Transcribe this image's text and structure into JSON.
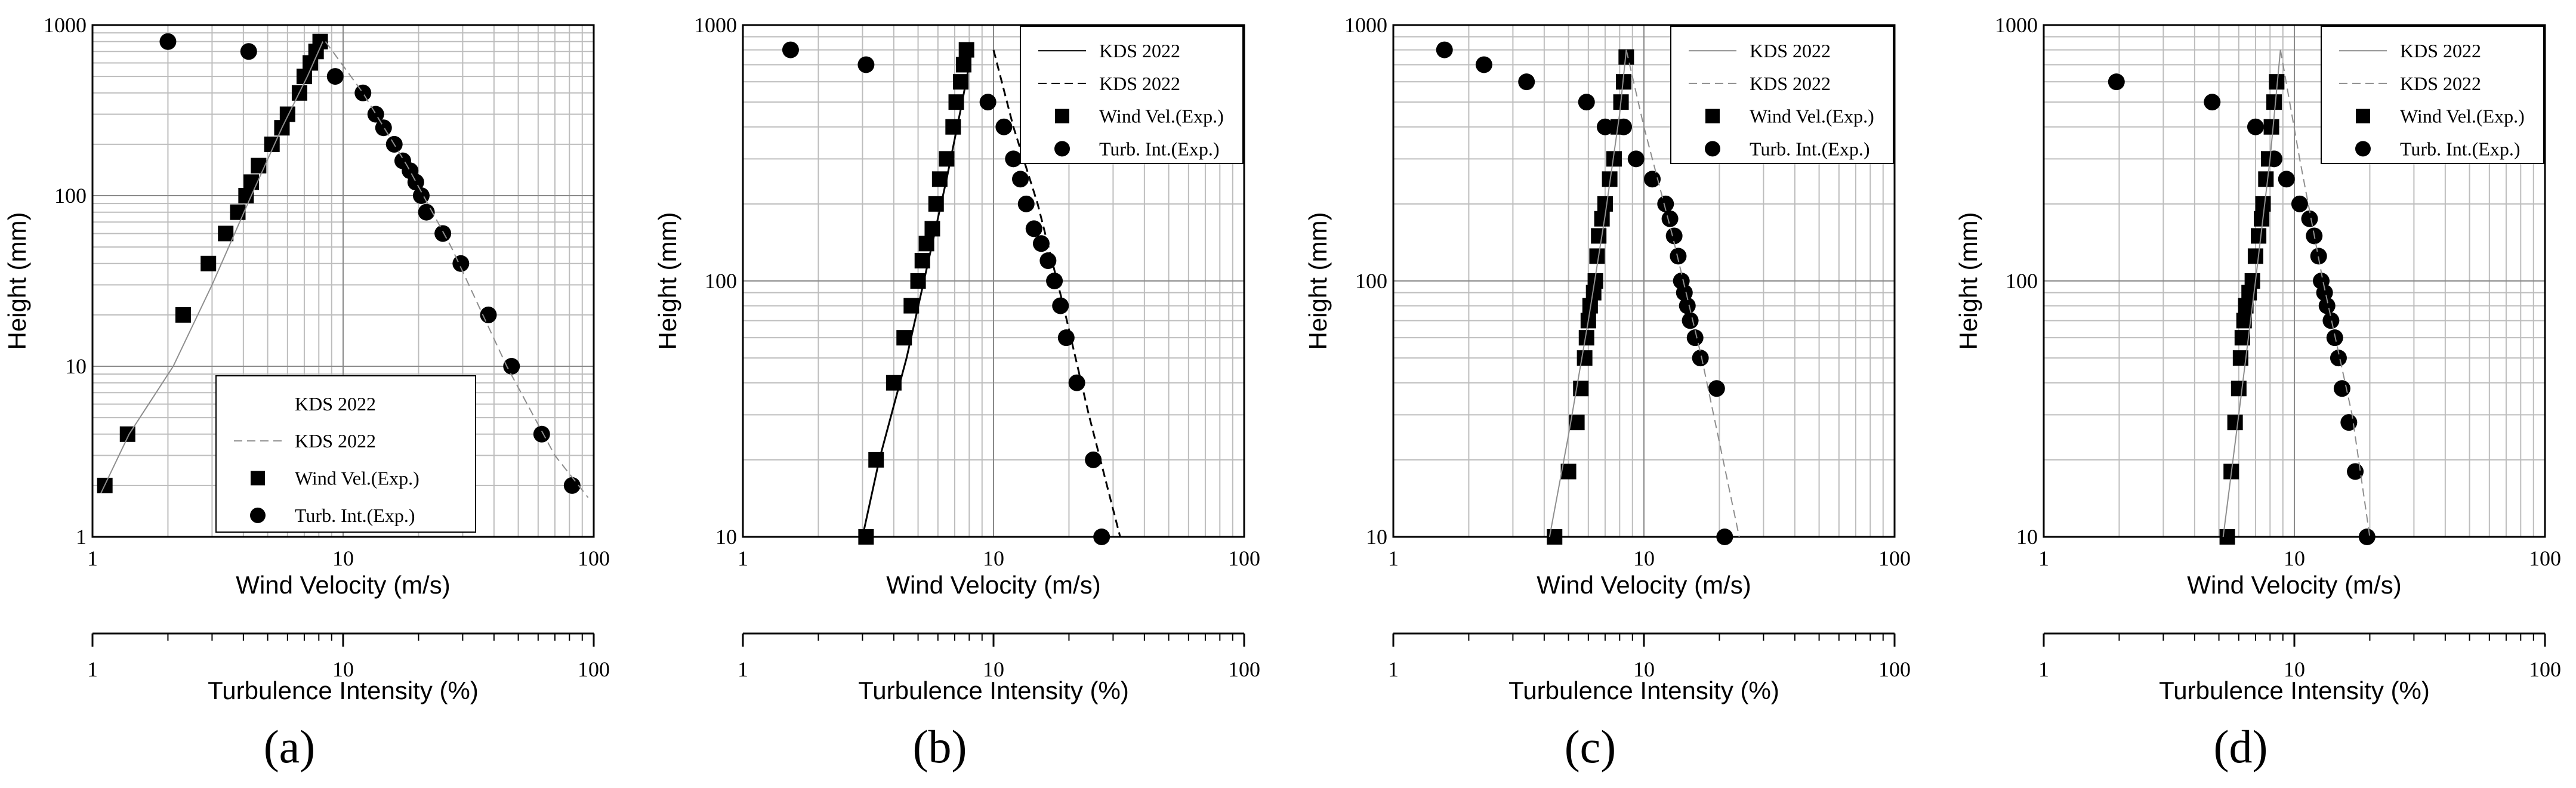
{
  "figure": {
    "panels": [
      "(a)",
      "(b)",
      "(c)",
      "(d)"
    ]
  },
  "chart_data": [
    {
      "panel_label": "(a)",
      "type": "scatter",
      "xscale": "log",
      "yscale": "log",
      "xlim": [
        1,
        100
      ],
      "ylim": [
        1,
        1000
      ],
      "xlabel": "Wind Velocity (m/s)",
      "x2label": "Turbulence Intensity (%)",
      "ylabel": "Height (mm)",
      "x_ticks": [
        "1",
        "10",
        "100"
      ],
      "x2_ticks": [
        "1",
        "10",
        "100"
      ],
      "y_ticks": [
        "1",
        "10",
        "100",
        "1000"
      ],
      "legend": [
        "KDS 2022",
        "KDS 2022",
        "Wind Vel.(Exp.)",
        "Turb. Int.(Exp.)"
      ],
      "legend_position": "lower-center",
      "series": [
        {
          "name": "Wind Vel.(Exp.)",
          "marker": "square",
          "x": [
            1.12,
            1.38,
            2.3,
            2.9,
            3.4,
            3.8,
            4.1,
            4.3,
            4.6,
            5.2,
            5.7,
            6.0,
            6.7,
            7.0,
            7.4,
            7.8,
            8.1
          ],
          "y": [
            2,
            4,
            20,
            40,
            60,
            80,
            100,
            120,
            150,
            200,
            250,
            300,
            400,
            500,
            600,
            700,
            800
          ]
        },
        {
          "name": "Turb. Int.(Exp.)",
          "marker": "circle",
          "x": [
            2.0,
            4.2,
            9.3,
            12.0,
            13.5,
            14.5,
            16.0,
            17.3,
            18.5,
            19.5,
            20.5,
            21.5,
            25.0,
            29.5,
            38.0,
            47.0,
            62.0,
            82.0
          ],
          "y": [
            800,
            700,
            500,
            400,
            300,
            250,
            200,
            160,
            140,
            120,
            100,
            80,
            60,
            40,
            20,
            10,
            4,
            2
          ]
        },
        {
          "name": "KDS 2022",
          "style": "solid",
          "x": [
            1.08,
            1.4,
            2.1,
            3.0,
            4.3,
            5.7,
            7.2,
            8.3
          ],
          "y": [
            1.8,
            4,
            10,
            30,
            100,
            250,
            500,
            800
          ]
        },
        {
          "name": "KDS 2022",
          "style": "dashed",
          "x": [
            8.5,
            12.0,
            18.0,
            27.0,
            45.0,
            70.0,
            95.0
          ],
          "y": [
            800,
            400,
            150,
            50,
            10,
            3,
            1.7
          ]
        }
      ]
    },
    {
      "panel_label": "(b)",
      "type": "scatter",
      "xscale": "log",
      "yscale": "log",
      "xlim": [
        1,
        100
      ],
      "ylim": [
        10,
        1000
      ],
      "xlabel": "Wind Velocity (m/s)",
      "x2label": "Turbulence Intensity (%)",
      "ylabel": "Height (mm)",
      "x_ticks": [
        "1",
        "10",
        "100"
      ],
      "x2_ticks": [
        "1",
        "10",
        "100"
      ],
      "y_ticks": [
        "10",
        "100",
        "1000"
      ],
      "legend": [
        "KDS 2022",
        "KDS 2022",
        "Wind Vel.(Exp.)",
        "Turb. Int.(Exp.)"
      ],
      "legend_position": "top-right",
      "series": [
        {
          "name": "Wind Vel.(Exp.)",
          "marker": "square",
          "x": [
            3.1,
            3.4,
            4.0,
            4.4,
            4.7,
            5.0,
            5.2,
            5.4,
            5.7,
            5.9,
            6.1,
            6.5,
            6.9,
            7.1,
            7.4,
            7.6,
            7.8
          ],
          "y": [
            10,
            20,
            40,
            60,
            80,
            100,
            120,
            140,
            160,
            200,
            250,
            300,
            400,
            500,
            600,
            700,
            800
          ]
        },
        {
          "name": "Turb. Int.(Exp.)",
          "marker": "circle",
          "x": [
            1.55,
            3.1,
            9.5,
            11.0,
            12.0,
            12.8,
            13.5,
            14.5,
            15.5,
            16.5,
            17.5,
            18.5,
            19.5,
            21.5,
            25.0,
            27.0
          ],
          "y": [
            800,
            700,
            500,
            400,
            300,
            250,
            200,
            160,
            140,
            120,
            100,
            80,
            60,
            40,
            20,
            10
          ]
        },
        {
          "name": "KDS 2022",
          "style": "solid",
          "x": [
            3.0,
            3.5,
            4.5,
            5.5,
            6.5,
            7.5,
            8.2
          ],
          "y": [
            10,
            20,
            50,
            120,
            250,
            500,
            800
          ]
        },
        {
          "name": "KDS 2022",
          "style": "dashed",
          "x": [
            10.0,
            12.0,
            15.0,
            19.0,
            24.0,
            32.0
          ],
          "y": [
            800,
            400,
            200,
            80,
            30,
            10
          ]
        }
      ]
    },
    {
      "panel_label": "(c)",
      "type": "scatter",
      "xscale": "log",
      "yscale": "log",
      "xlim": [
        1,
        100
      ],
      "ylim": [
        10,
        1000
      ],
      "xlabel": "Wind Velocity (m/s)",
      "x2label": "Turbulence Intensity (%)",
      "ylabel": "Height (mm)",
      "x_ticks": [
        "1",
        "10",
        "100"
      ],
      "x2_ticks": [
        "1",
        "10",
        "100"
      ],
      "y_ticks": [
        "10",
        "100",
        "1000"
      ],
      "legend": [
        "KDS 2022",
        "KDS 2022",
        "Wind Vel.(Exp.)",
        "Turb. Int.(Exp.)"
      ],
      "legend_position": "top-right",
      "series": [
        {
          "name": "Wind Vel.(Exp.)",
          "marker": "square",
          "x": [
            4.4,
            5.0,
            5.4,
            5.6,
            5.8,
            5.9,
            6.0,
            6.1,
            6.3,
            6.4,
            6.5,
            6.6,
            6.8,
            7.0,
            7.3,
            7.6,
            7.9,
            8.1,
            8.3,
            8.5
          ],
          "y": [
            10,
            18,
            28,
            38,
            50,
            60,
            70,
            80,
            90,
            100,
            125,
            150,
            175,
            200,
            250,
            300,
            400,
            500,
            600,
            750
          ]
        },
        {
          "name": "Turb. Int.(Exp.)",
          "marker": "circle",
          "x": [
            1.6,
            2.3,
            3.4,
            5.9,
            7.0,
            8.3,
            9.3,
            10.8,
            12.2,
            12.7,
            13.2,
            13.7,
            14.1,
            14.5,
            14.9,
            15.3,
            16.0,
            16.8,
            19.5,
            21.0
          ],
          "y": [
            800,
            700,
            600,
            500,
            400,
            400,
            300,
            250,
            200,
            175,
            150,
            125,
            100,
            90,
            80,
            70,
            60,
            50,
            38,
            10
          ]
        },
        {
          "name": "KDS 2022",
          "style": "solid",
          "x": [
            4.2,
            5.0,
            6.0,
            7.0,
            8.0,
            8.5
          ],
          "y": [
            10,
            25,
            70,
            180,
            450,
            800
          ]
        },
        {
          "name": "KDS 2022",
          "style": "dashed",
          "x": [
            8.5,
            10.0,
            13.0,
            17.0,
            24.0
          ],
          "y": [
            800,
            400,
            150,
            50,
            10
          ]
        }
      ]
    },
    {
      "panel_label": "(d)",
      "type": "scatter",
      "xscale": "log",
      "yscale": "log",
      "xlim": [
        1,
        100
      ],
      "ylim": [
        10,
        1000
      ],
      "xlabel": "Wind Velocity (m/s)",
      "x2label": "Turbulence Intensity (%)",
      "ylabel": "Height (mm)",
      "x_ticks": [
        "1",
        "10",
        "100"
      ],
      "x2_ticks": [
        "1",
        "10",
        "100"
      ],
      "y_ticks": [
        "10",
        "100",
        "1000"
      ],
      "legend": [
        "KDS 2022",
        "KDS 2022",
        "Wind Vel.(Exp.)",
        "Turb. Int.(Exp.)"
      ],
      "legend_position": "top-right",
      "series": [
        {
          "name": "Wind Vel.(Exp.)",
          "marker": "square",
          "x": [
            5.4,
            5.6,
            5.8,
            6.0,
            6.1,
            6.2,
            6.3,
            6.4,
            6.6,
            6.8,
            7.0,
            7.2,
            7.4,
            7.5,
            7.7,
            7.9,
            8.1,
            8.3,
            8.5
          ],
          "y": [
            10,
            18,
            28,
            38,
            50,
            60,
            70,
            80,
            90,
            100,
            125,
            150,
            175,
            200,
            250,
            300,
            400,
            500,
            600
          ]
        },
        {
          "name": "Turb. Int.(Exp.)",
          "marker": "circle",
          "x": [
            1.95,
            4.7,
            7.0,
            8.3,
            9.3,
            10.5,
            11.5,
            12.0,
            12.5,
            12.8,
            13.2,
            13.5,
            14.0,
            14.5,
            15.0,
            15.5,
            16.5,
            17.5,
            19.5
          ],
          "y": [
            600,
            500,
            400,
            300,
            250,
            200,
            175,
            150,
            125,
            100,
            90,
            80,
            70,
            60,
            50,
            38,
            28,
            18,
            10
          ]
        },
        {
          "name": "KDS 2022",
          "style": "solid",
          "x": [
            5.2,
            6.0,
            7.0,
            8.0,
            8.8
          ],
          "y": [
            10,
            30,
            100,
            300,
            800
          ]
        },
        {
          "name": "KDS 2022",
          "style": "dashed",
          "x": [
            8.8,
            10.5,
            13.0,
            17.0,
            20.0
          ],
          "y": [
            800,
            300,
            100,
            30,
            10
          ]
        }
      ]
    }
  ]
}
